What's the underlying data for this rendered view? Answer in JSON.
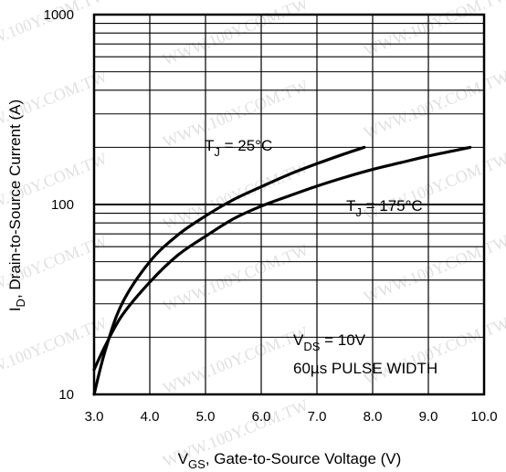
{
  "chart_data": {
    "type": "line",
    "x_axis": {
      "label_main": "V",
      "label_sub": "GS",
      "label_rest": ", Gate-to-Source Voltage (V)",
      "range": [
        3.0,
        10.0
      ],
      "ticks": [
        3.0,
        4.0,
        5.0,
        6.0,
        7.0,
        8.0,
        9.0,
        10.0
      ],
      "tick_labels": [
        "3.0",
        "4.0",
        "5.0",
        "6.0",
        "7.0",
        "8.0",
        "9.0",
        "10.0"
      ]
    },
    "y_axis": {
      "label_main": "I",
      "label_sub": "D",
      "label_rest": ", Drain-to-Source Current  (A)",
      "scale": "log",
      "range": [
        10,
        1000
      ],
      "ticks": [
        10,
        100,
        1000
      ],
      "tick_labels": [
        "10",
        "100",
        "1000"
      ]
    },
    "grid": true,
    "series": [
      {
        "name_main": "T",
        "name_sub": "J",
        "name_rest": " = 25°C",
        "x": [
          3.0,
          3.2,
          3.5,
          4.0,
          4.5,
          5.0,
          5.5,
          6.0,
          6.5,
          7.0,
          7.5,
          7.85
        ],
        "y": [
          10,
          17,
          30,
          50,
          69,
          87,
          106,
          124,
          144,
          164,
          185,
          200
        ]
      },
      {
        "name_main": "T",
        "name_sub": "J",
        "name_rest": " = 175°C",
        "x": [
          3.0,
          3.2,
          3.5,
          4.0,
          4.5,
          5.0,
          5.5,
          6.0,
          6.5,
          7.0,
          7.5,
          8.0,
          8.5,
          9.0,
          9.5,
          9.75
        ],
        "y": [
          13.5,
          18,
          26,
          39,
          54,
          68,
          84,
          98,
          111,
          125,
          139,
          153,
          166,
          180,
          193,
          200
        ]
      }
    ],
    "annotations": {
      "vds_main": "V",
      "vds_sub": "DS",
      "vds_rest": " = 10V",
      "pulse": "60µs PULSE WIDTH"
    },
    "watermark": "WWW.100Y.COM.TW"
  }
}
